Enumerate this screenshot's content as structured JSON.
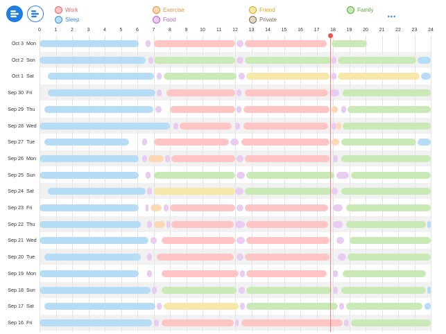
{
  "legend": [
    {
      "label": "Work",
      "color": "#ffc4c4",
      "text": "#e06666"
    },
    {
      "label": "Sleep",
      "color": "#b6dcf6",
      "text": "#3b8ed6"
    },
    {
      "label": "Exercise",
      "color": "#fcd9b4",
      "text": "#e6923c"
    },
    {
      "label": "Food",
      "color": "#e9ccf2",
      "text": "#b763cc"
    },
    {
      "label": "Friend",
      "color": "#f7e7a9",
      "text": "#d9a81c"
    },
    {
      "label": "Private",
      "color": "#e2d6c2",
      "text": "#7a6950"
    },
    {
      "label": "Family",
      "color": "#c9eab6",
      "text": "#5aab3b"
    }
  ],
  "icons": {
    "logo": "timeline-logo-icon",
    "layout": "layout-icon",
    "more": "more-icon"
  },
  "more_label": "•••",
  "hours": [
    "0",
    "1",
    "2",
    "3",
    "4",
    "5",
    "6",
    "7",
    "8",
    "9",
    "10",
    "11",
    "12",
    "13",
    "14",
    "15",
    "16",
    "17",
    "18",
    "19",
    "20",
    "21",
    "22",
    "23",
    "24"
  ],
  "current_time_hour": 17.85,
  "rows": [
    {
      "date": "Oct 3",
      "day": "Mon",
      "segments": [
        [
          "sleep",
          0,
          6.1
        ],
        [
          "food",
          6.5,
          6.8
        ],
        [
          "work",
          7,
          12
        ],
        [
          "food",
          12.1,
          12.5
        ],
        [
          "work",
          12.6,
          17.6
        ],
        [
          "family",
          17.9,
          20.1
        ]
      ]
    },
    {
      "date": "Oct 2",
      "day": "Sun",
      "segments": [
        [
          "sleep",
          0,
          6.5
        ],
        [
          "food",
          6.7,
          7
        ],
        [
          "family",
          7,
          12
        ],
        [
          "food",
          12.1,
          12.5
        ],
        [
          "family",
          12.6,
          17.9
        ],
        [
          "food",
          17.9,
          18.2
        ],
        [
          "family",
          18.3,
          23.1
        ],
        [
          "sleep",
          23.2,
          24
        ]
      ]
    },
    {
      "date": "Oct 1",
      "day": "Sat",
      "segments": [
        [
          "sleep",
          0.5,
          7
        ],
        [
          "food",
          7.2,
          7.5
        ],
        [
          "family",
          7.6,
          12.1
        ],
        [
          "food",
          12.2,
          12.6
        ],
        [
          "friend",
          12.7,
          17.8
        ],
        [
          "food",
          17.9,
          18.2
        ],
        [
          "friend",
          18.3,
          23.3
        ],
        [
          "sleep",
          23.4,
          24
        ]
      ]
    },
    {
      "date": "Sep 30",
      "day": "Fri",
      "segments": [
        [
          "sleep",
          0.5,
          7.1
        ],
        [
          "food",
          7.2,
          7.5
        ],
        [
          "work",
          7.8,
          12
        ],
        [
          "food",
          12.1,
          12.4
        ],
        [
          "work",
          12.6,
          17.7
        ],
        [
          "food",
          17.8,
          18.4
        ],
        [
          "family",
          18.6,
          24
        ]
      ]
    },
    {
      "date": "Sep 29",
      "day": "Thu",
      "segments": [
        [
          "sleep",
          0.3,
          7
        ],
        [
          "food",
          7.1,
          7.5
        ],
        [
          "work",
          8,
          12
        ],
        [
          "food",
          12.1,
          12.4
        ],
        [
          "work",
          12.5,
          17.8
        ],
        [
          "exercise",
          17.9,
          18.3
        ],
        [
          "food",
          18.5,
          18.8
        ],
        [
          "family",
          18.9,
          24
        ]
      ]
    },
    {
      "date": "Sep 28",
      "day": "Wed",
      "segments": [
        [
          "sleep",
          0,
          8
        ],
        [
          "food",
          8.2,
          8.5
        ],
        [
          "work",
          8.6,
          11.8
        ],
        [
          "food",
          12,
          12.3
        ],
        [
          "work",
          12.5,
          17.7
        ],
        [
          "food",
          17.9,
          18.2
        ],
        [
          "exercise",
          18.2,
          18.5
        ],
        [
          "family",
          18.6,
          24
        ]
      ]
    },
    {
      "date": "Sep 27",
      "day": "Tue",
      "segments": [
        [
          "sleep",
          0.3,
          5.5
        ],
        [
          "food",
          6.3,
          6.6
        ],
        [
          "work",
          7,
          11.6
        ],
        [
          "food",
          11.7,
          12.2
        ],
        [
          "work",
          12.4,
          17.8
        ],
        [
          "exercise",
          17.9,
          18.4
        ],
        [
          "family",
          18.5,
          23.1
        ],
        [
          "sleep",
          23.2,
          24
        ]
      ]
    },
    {
      "date": "Sep 26",
      "day": "Mon",
      "segments": [
        [
          "sleep",
          0,
          6.1
        ],
        [
          "food",
          6.3,
          6.6
        ],
        [
          "exercise",
          6.7,
          7.6
        ],
        [
          "food",
          7.7,
          8
        ],
        [
          "work",
          8.1,
          12
        ],
        [
          "food",
          12.1,
          12.5
        ],
        [
          "work",
          12.6,
          17.8
        ],
        [
          "food",
          18,
          18.3
        ],
        [
          "family",
          18.5,
          24
        ]
      ]
    },
    {
      "date": "Sep 25",
      "day": "Sun",
      "segments": [
        [
          "sleep",
          0,
          6.1
        ],
        [
          "food",
          6.5,
          6.8
        ],
        [
          "family",
          7,
          12
        ],
        [
          "food",
          12.1,
          12.6
        ],
        [
          "family",
          12.7,
          18.1
        ],
        [
          "food",
          18.2,
          19
        ],
        [
          "family",
          19.1,
          24
        ]
      ]
    },
    {
      "date": "Sep 24",
      "day": "Sat",
      "segments": [
        [
          "sleep",
          0.5,
          6.5
        ],
        [
          "food",
          6.6,
          6.9
        ],
        [
          "friend",
          7,
          12
        ],
        [
          "food",
          12,
          12.5
        ],
        [
          "family",
          12.6,
          17.9
        ],
        [
          "food",
          17.9,
          18.3
        ],
        [
          "family",
          18.5,
          24
        ]
      ]
    },
    {
      "date": "Sep 23",
      "day": "Fri",
      "segments": [
        [
          "sleep",
          0,
          6.1
        ],
        [
          "food",
          6.5,
          6.7
        ],
        [
          "exercise",
          6.8,
          7.5
        ],
        [
          "food",
          7.6,
          7.9
        ],
        [
          "work",
          8,
          12
        ],
        [
          "food",
          12.1,
          12.5
        ],
        [
          "work",
          12.6,
          17.7
        ],
        [
          "food",
          18,
          18.6
        ],
        [
          "family",
          18.8,
          24
        ]
      ]
    },
    {
      "date": "Sep 22",
      "day": "Thu",
      "segments": [
        [
          "sleep",
          0,
          6.2
        ],
        [
          "food",
          6.6,
          6.9
        ],
        [
          "exercise",
          7,
          7.7
        ],
        [
          "food",
          7.8,
          8
        ],
        [
          "work",
          8.1,
          11.9
        ],
        [
          "food",
          12,
          12.6
        ],
        [
          "work",
          12.7,
          17.7
        ],
        [
          "food",
          18,
          18.6
        ],
        [
          "family",
          18.8,
          23.7
        ],
        [
          "sleep",
          23.8,
          24
        ]
      ]
    },
    {
      "date": "Sep 21",
      "day": "Wed",
      "segments": [
        [
          "sleep",
          0,
          6.7
        ],
        [
          "food",
          6.8,
          7.2
        ],
        [
          "work",
          7.5,
          12
        ],
        [
          "food",
          12.1,
          12.6
        ],
        [
          "work",
          12.7,
          17.8
        ],
        [
          "food",
          18.2,
          18.7
        ],
        [
          "family",
          19,
          24
        ]
      ]
    },
    {
      "date": "Sep 20",
      "day": "Tue",
      "segments": [
        [
          "sleep",
          0.3,
          6.2
        ],
        [
          "food",
          6.6,
          6.9
        ],
        [
          "work",
          7.2,
          11.9
        ],
        [
          "food",
          12.1,
          12.5
        ],
        [
          "work",
          12.6,
          17.8
        ],
        [
          "food",
          18.3,
          18.8
        ],
        [
          "family",
          18.9,
          24
        ]
      ]
    },
    {
      "date": "Sep 19",
      "day": "Mon",
      "segments": [
        [
          "sleep",
          0,
          6.1
        ],
        [
          "food",
          6.6,
          6.9
        ],
        [
          "work",
          7.5,
          12.2
        ],
        [
          "food",
          12.3,
          12.6
        ],
        [
          "work",
          12.7,
          17.6
        ],
        [
          "food",
          18,
          18.3
        ],
        [
          "family",
          18.6,
          23.7
        ]
      ]
    },
    {
      "date": "Sep 18",
      "day": "Sun",
      "segments": [
        [
          "sleep",
          0,
          6.8
        ],
        [
          "food",
          6.9,
          7.2
        ],
        [
          "family",
          7.5,
          12.1
        ],
        [
          "food",
          12.2,
          12.6
        ],
        [
          "family",
          12.7,
          17.9
        ],
        [
          "food",
          18,
          18.3
        ],
        [
          "family",
          18.5,
          23.7
        ],
        [
          "sleep",
          23.8,
          24
        ]
      ]
    },
    {
      "date": "Sep 17",
      "day": "Sat",
      "segments": [
        [
          "sleep",
          0.3,
          7.1
        ],
        [
          "food",
          7.2,
          7.5
        ],
        [
          "friend",
          7.6,
          12.2
        ],
        [
          "food",
          12.3,
          12.6
        ],
        [
          "family",
          12.7,
          18.3
        ],
        [
          "food",
          18.4,
          18.7
        ],
        [
          "family",
          18.8,
          23.5
        ],
        [
          "sleep",
          23.6,
          24
        ]
      ]
    },
    {
      "date": "Sep 16",
      "day": "Fri",
      "segments": [
        [
          "sleep",
          0,
          6.9
        ],
        [
          "food",
          7,
          7.3
        ],
        [
          "work",
          7.5,
          11.9
        ],
        [
          "food",
          12,
          12.2
        ],
        [
          "work",
          12.4,
          18.6
        ],
        [
          "food",
          18.7,
          19
        ],
        [
          "family",
          19.1,
          24
        ]
      ]
    }
  ]
}
